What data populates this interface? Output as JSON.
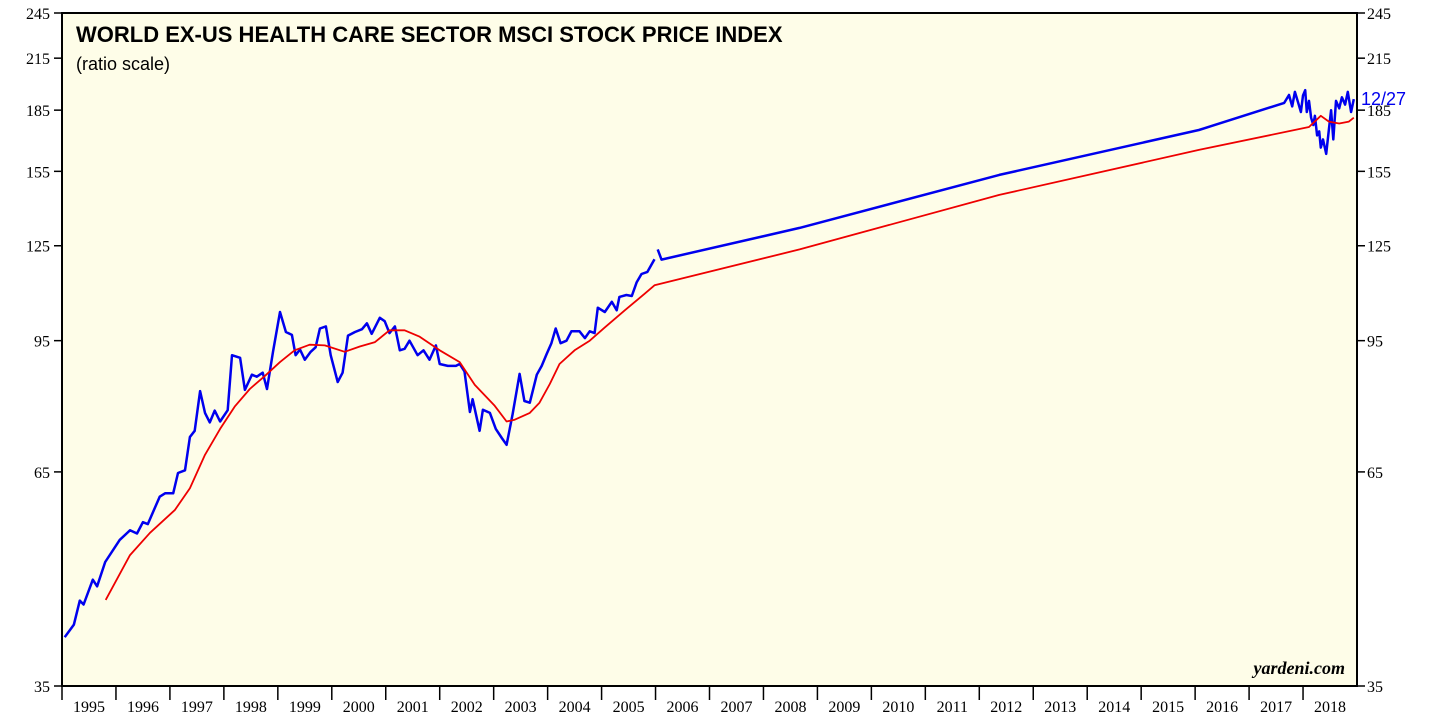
{
  "chart_data": {
    "type": "line",
    "title": "WORLD EX-US HEALTH CARE SECTOR MSCI STOCK PRICE INDEX",
    "subtitle": "(ratio scale)",
    "annotations": [
      "12/27",
      "yardeni.com"
    ],
    "log": true,
    "xlim": [
      1995,
      2019
    ],
    "xticks": [
      1995,
      1996,
      1997,
      1998,
      1999,
      2000,
      2001,
      2002,
      2003,
      2004,
      2005,
      2006,
      2007,
      2008,
      2009,
      2010,
      2011,
      2012,
      2013,
      2014,
      2015,
      2016,
      2017,
      2018
    ],
    "ylim": [
      35,
      245
    ],
    "yticks": [
      35,
      65,
      95,
      125,
      155,
      185,
      215,
      245
    ],
    "series": [
      {
        "color": "#0000ee",
        "x": [
          1995.05,
          1995.22,
          1995.33,
          1995.4,
          1995.57,
          1995.65,
          1995.8,
          1996.07,
          1996.26,
          1996.39,
          1996.5,
          1996.59,
          1996.81,
          1996.91,
          1997.06,
          1997.15,
          1997.28,
          1997.37,
          1997.46,
          1997.56,
          1997.65,
          1997.74,
          1997.83,
          1997.93,
          1998.07,
          1998.15,
          1998.3,
          1998.39,
          1998.52,
          1998.61,
          1998.72,
          1998.8,
          1998.91,
          1999.04,
          1999.15,
          1999.26,
          1999.33,
          1999.41,
          1999.5,
          1999.61,
          1999.7,
          1999.78,
          1999.89,
          1999.98,
          2000.11,
          2000.2,
          2000.3,
          2000.43,
          2000.56,
          2000.65,
          2000.74,
          2000.89,
          2000.98,
          2001.07,
          2001.17,
          2001.26,
          2001.35,
          2001.44,
          2001.59,
          2001.7,
          2001.81,
          2001.93,
          2002.0,
          2002.15,
          2002.3,
          2002.37,
          2002.46,
          2002.56,
          2002.61,
          2002.74,
          2002.8,
          2002.93,
          2003.04,
          2003.15,
          2003.24,
          2003.35,
          2003.48,
          2003.57,
          2003.67,
          2003.8,
          2003.89,
          2003.98,
          2004.07,
          2004.15,
          2004.24,
          2004.35,
          2004.44,
          2004.59,
          2004.69,
          2004.78,
          2004.87,
          2004.93,
          2005.06,
          2005.19,
          2005.28,
          2005.33,
          2005.46,
          2005.56,
          2005.65,
          2005.74,
          2005.85,
          2005.98,
          2006.01,
          2006.04,
          2006.11,
          2008.67,
          2012.37,
          2016.07,
          2017.65,
          2017.74,
          2017.8,
          2017.85,
          2017.91,
          2017.96,
          2018.0,
          2018.04,
          2018.07,
          2018.11,
          2018.15,
          2018.19,
          2018.22,
          2018.26,
          2018.3,
          2018.33,
          2018.37,
          2018.43,
          2018.48,
          2018.52,
          2018.56,
          2018.61,
          2018.67,
          2018.72,
          2018.78,
          2018.83,
          2018.89,
          2018.94
        ],
        "values": [
          40.3,
          41.8,
          44.8,
          44.3,
          47.6,
          46.7,
          50.1,
          53.4,
          54.9,
          54.4,
          56.2,
          55.9,
          60.5,
          61.1,
          61.1,
          64.8,
          65.3,
          71.9,
          73.2,
          82.1,
          77.1,
          75.0,
          77.6,
          75.2,
          77.7,
          91.1,
          90.4,
          82.4,
          86.1,
          85.6,
          86.6,
          82.6,
          92.0,
          103.2,
          97.4,
          96.6,
          91.1,
          92.6,
          89.9,
          92.0,
          93.2,
          98.4,
          99.0,
          91.1,
          84.3,
          86.6,
          96.4,
          97.4,
          98.2,
          99.9,
          96.9,
          101.5,
          100.5,
          97.1,
          99.0,
          92.4,
          92.8,
          95.0,
          91.1,
          92.4,
          89.9,
          93.7,
          88.8,
          88.3,
          88.3,
          88.8,
          86.9,
          77.3,
          80.2,
          73.2,
          77.8,
          77.1,
          73.6,
          71.7,
          70.3,
          76.8,
          86.3,
          79.8,
          79.4,
          86.1,
          88.3,
          91.3,
          94.3,
          98.4,
          94.3,
          95.0,
          97.6,
          97.6,
          95.7,
          97.6,
          97.1,
          104.5,
          103.2,
          106.3,
          103.7,
          107.8,
          108.4,
          108.1,
          112.5,
          115.2,
          115.9,
          120.2,
          null,
          123.7,
          120.1,
          131.6,
          153.4,
          174.7,
          188.9,
          193.3,
          187,
          195,
          189,
          184,
          193,
          196,
          184,
          190,
          181,
          177.2,
          182,
          172,
          174,
          166,
          170,
          163,
          175,
          185,
          170,
          190,
          186,
          192,
          188,
          195,
          184,
          191
        ]
      },
      {
        "color": "#ee0000",
        "x": [
          1995.81,
          1996.26,
          1996.63,
          1997.09,
          1997.37,
          1997.65,
          1997.93,
          1998.2,
          1998.48,
          1998.76,
          1999.04,
          1999.31,
          1999.59,
          1999.87,
          2000.24,
          2000.52,
          2000.8,
          2001.07,
          2001.35,
          2001.63,
          2002.0,
          2002.37,
          2002.65,
          2003.02,
          2003.24,
          2003.39,
          2003.67,
          2003.85,
          2004.04,
          2004.22,
          2004.5,
          2004.78,
          2005.06,
          2005.43,
          2005.8,
          2005.98,
          2008.67,
          2012.37,
          2016.07,
          2018.11,
          2018.33,
          2018.48,
          2018.67,
          2018.85,
          2018.94
        ],
        "values": [
          44.9,
          51.1,
          54.5,
          58.2,
          62.0,
          68.3,
          73.6,
          78.5,
          82.6,
          85.8,
          89.3,
          92.4,
          93.9,
          93.7,
          92.0,
          93.4,
          94.6,
          97.9,
          97.9,
          96.1,
          92.4,
          89.3,
          83.6,
          78.7,
          75.2,
          75.6,
          77.1,
          79.4,
          83.8,
          88.8,
          92.4,
          95.0,
          98.7,
          103.7,
          108.8,
          111.5,
          123.7,
          144.8,
          164.9,
          176.2,
          182,
          179,
          178,
          179,
          181
        ]
      }
    ]
  }
}
